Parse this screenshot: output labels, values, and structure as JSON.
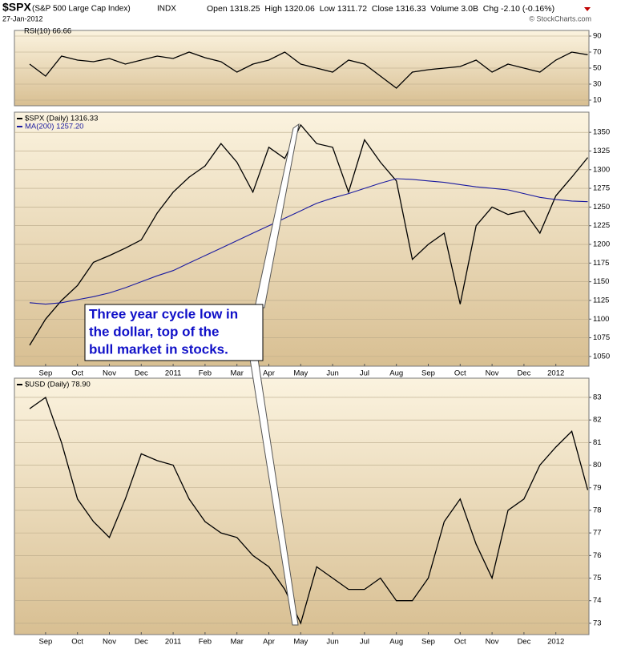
{
  "header": {
    "symbol": "$SPX",
    "name": "(S&P 500 Large Cap Index)",
    "exchange": "INDX",
    "date": "27-Jan-2012",
    "quote": "Open 1318.25  High 1320.06  Low 1311.72  Close 1316.33  Volume 3.0B  Chg -2.10 (-0.16%)",
    "credit": "© StockCharts.com"
  },
  "annotation": {
    "lines": [
      "Three year cycle low in",
      "the dollar, top of the",
      "bull market in stocks."
    ]
  },
  "chart_data": [
    {
      "type": "line",
      "title": "RSI(10) 66.66",
      "series": [
        {
          "color": "#000000",
          "values": [
            55,
            40,
            65,
            60,
            58,
            62,
            55,
            60,
            65,
            62,
            70,
            63,
            58,
            45,
            55,
            60,
            70,
            55,
            50,
            45,
            60,
            55,
            40,
            25,
            45,
            48,
            50,
            52,
            60,
            45,
            55,
            50,
            45,
            60,
            70,
            66.66
          ]
        }
      ],
      "ylim": [
        3,
        97
      ],
      "yticks": [
        10,
        30,
        50,
        70,
        90
      ],
      "grid": true
    },
    {
      "type": "line",
      "categories": [
        null,
        "Sep",
        null,
        "Oct",
        null,
        "Nov",
        null,
        "Dec",
        null,
        "2011",
        null,
        "Feb",
        null,
        "Mar",
        null,
        "Apr",
        null,
        "May",
        null,
        "Jun",
        null,
        "Jul",
        null,
        "Aug",
        null,
        "Sep",
        null,
        "Oct",
        null,
        "Nov",
        null,
        "Dec",
        null,
        "2012",
        null,
        null
      ],
      "series": [
        {
          "name": "$SPX (Daily) 1316.33",
          "color": "#000000",
          "values": [
            1065,
            1100,
            1125,
            1145,
            1176,
            1185,
            1195,
            1206,
            1242,
            1270,
            1290,
            1305,
            1335,
            1310,
            1270,
            1330,
            1315,
            1360,
            1335,
            1330,
            1270,
            1340,
            1310,
            1285,
            1180,
            1200,
            1215,
            1120,
            1225,
            1250,
            1240,
            1245,
            1215,
            1265,
            1290,
            1316.33
          ]
        },
        {
          "name": "MA(200) 1257.20",
          "color": "#1a1aa0",
          "values": [
            1122,
            1120,
            1122,
            1126,
            1130,
            1135,
            1142,
            1150,
            1158,
            1165,
            1175,
            1185,
            1195,
            1205,
            1215,
            1225,
            1235,
            1245,
            1255,
            1262,
            1268,
            1275,
            1282,
            1288,
            1287,
            1285,
            1283,
            1280,
            1277,
            1275,
            1273,
            1268,
            1263,
            1260,
            1258,
            1257.2
          ]
        }
      ],
      "ylim": [
        1037,
        1377
      ],
      "yticks": [
        1050,
        1075,
        1100,
        1125,
        1150,
        1175,
        1200,
        1225,
        1250,
        1275,
        1300,
        1325,
        1350
      ],
      "grid": true
    },
    {
      "type": "line",
      "categories": [
        null,
        "Sep",
        null,
        "Oct",
        null,
        "Nov",
        null,
        "Dec",
        null,
        "2011",
        null,
        "Feb",
        null,
        "Mar",
        null,
        "Apr",
        null,
        "May",
        null,
        "Jun",
        null,
        "Jul",
        null,
        "Aug",
        null,
        "Sep",
        null,
        "Oct",
        null,
        "Nov",
        null,
        "Dec",
        null,
        "2012",
        null,
        null
      ],
      "series": [
        {
          "name": "$USD (Daily) 78.90",
          "color": "#000000",
          "values": [
            82.5,
            83,
            81,
            78.5,
            77.5,
            76.8,
            78.5,
            80.5,
            80.2,
            80,
            78.5,
            77.5,
            77,
            76.8,
            76,
            75.5,
            74.5,
            73,
            75.5,
            75,
            74.5,
            74.5,
            75,
            74,
            74,
            75,
            77.5,
            78.5,
            76.5,
            75,
            78,
            78.5,
            80,
            80.8,
            81.5,
            78.9
          ]
        }
      ],
      "ylim": [
        72.5,
        83.85
      ],
      "yticks": [
        73,
        74,
        75,
        76,
        77,
        78,
        79,
        80,
        81,
        82,
        83
      ],
      "grid": true
    }
  ]
}
